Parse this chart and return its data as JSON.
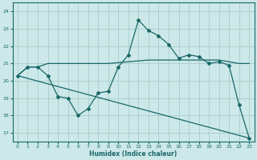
{
  "xlabel": "Humidex (Indice chaleur)",
  "bg_color": "#cce8e8",
  "grid_color": "#aacccc",
  "line_color": "#1a6868",
  "xlim": [
    -0.5,
    23.5
  ],
  "ylim": [
    16.5,
    24.5
  ],
  "yticks": [
    17,
    18,
    19,
    20,
    21,
    22,
    23,
    24
  ],
  "xticks": [
    0,
    1,
    2,
    3,
    4,
    5,
    6,
    7,
    8,
    9,
    10,
    11,
    12,
    13,
    14,
    15,
    16,
    17,
    18,
    19,
    20,
    21,
    22,
    23
  ],
  "series1_x": [
    0,
    1,
    2,
    3,
    4,
    5,
    6,
    7,
    8,
    9,
    10,
    11,
    12,
    13,
    14,
    15,
    16,
    17,
    18,
    19,
    20,
    21,
    22,
    23
  ],
  "series1_y": [
    20.3,
    20.8,
    20.8,
    21.0,
    21.0,
    21.0,
    21.0,
    21.0,
    21.0,
    21.0,
    21.05,
    21.1,
    21.15,
    21.2,
    21.2,
    21.2,
    21.2,
    21.2,
    21.2,
    21.2,
    21.2,
    21.1,
    21.0,
    21.0
  ],
  "series2_x": [
    0,
    1,
    2,
    3,
    4,
    5,
    6,
    7,
    8,
    9,
    10,
    11,
    12,
    13,
    14,
    15,
    16,
    17,
    18,
    19,
    20,
    21,
    22,
    23
  ],
  "series2_y": [
    20.3,
    20.8,
    20.8,
    20.3,
    19.1,
    19.0,
    18.0,
    18.4,
    19.3,
    19.4,
    20.8,
    21.5,
    23.5,
    22.9,
    22.6,
    22.1,
    21.3,
    21.5,
    21.4,
    21.0,
    21.1,
    20.9,
    18.6,
    16.7
  ],
  "series3_x": [
    0,
    23
  ],
  "series3_y": [
    20.3,
    16.7
  ]
}
